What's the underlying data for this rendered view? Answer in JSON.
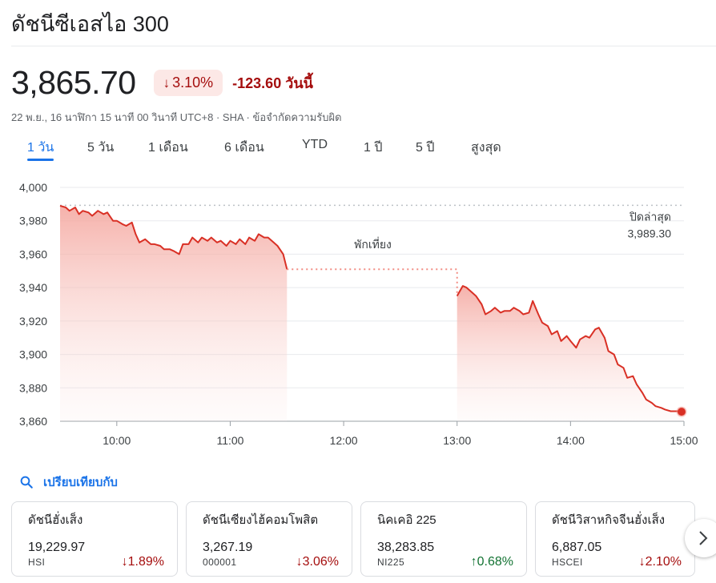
{
  "title": "ดัชนีซีเอสไอ 300",
  "quote": {
    "price": "3,865.70",
    "pct_change": "3.10%",
    "abs_change": "-123.60 วันนี้",
    "meta": "22 พ.ย., 16 นาฬิกา 15 นาที 00 วินาที UTC+8 · SHA · ข้อจำกัดความรับผิด"
  },
  "tabs": [
    {
      "label": "1 วัน",
      "active": true
    },
    {
      "label": "5 วัน"
    },
    {
      "label": "1 เดือน"
    },
    {
      "label": "6 เดือน"
    },
    {
      "label": "YTD"
    },
    {
      "label": "1 ปี"
    },
    {
      "label": "5 ปี"
    },
    {
      "label": "สูงสุด"
    }
  ],
  "chart_data": {
    "type": "area",
    "title": "",
    "xlabel": "",
    "ylabel": "",
    "ylim": [
      3860,
      4000
    ],
    "xlim": [
      "9:30",
      "15:00"
    ],
    "y_ticks": [
      "4,000",
      "3,980",
      "3,960",
      "3,940",
      "3,920",
      "3,900",
      "3,880",
      "3,860"
    ],
    "x_ticks": [
      "10:00",
      "11:00",
      "12:00",
      "13:00",
      "14:00",
      "15:00"
    ],
    "grid": true,
    "previous_close": {
      "label": "ปิดล่าสุด",
      "value": 3989.3,
      "value_label": "3,989.30"
    },
    "lunch_break": {
      "label": "พักเที่ยง",
      "from": "11:30",
      "to": "13:00"
    },
    "color": "#d93025",
    "series": [
      {
        "x": [
          "9:30",
          "9:33",
          "9:35",
          "9:38",
          "9:40",
          "9:42",
          "9:45",
          "9:47",
          "9:50",
          "9:53",
          "9:55",
          "9:58",
          "10:00",
          "10:03",
          "10:05",
          "10:08",
          "10:10",
          "10:12",
          "10:15",
          "10:18",
          "10:20",
          "10:23",
          "10:25",
          "10:28",
          "10:30",
          "10:33",
          "10:35",
          "10:38",
          "10:40",
          "10:43",
          "10:45",
          "10:48",
          "10:50",
          "10:53",
          "10:55",
          "10:58",
          "11:00",
          "11:03",
          "11:05",
          "11:08",
          "11:10",
          "11:13",
          "11:15",
          "11:18",
          "11:20",
          "11:23",
          "11:25",
          "11:28",
          "11:30"
        ],
        "y": [
          3989,
          3988,
          3986,
          3988,
          3984,
          3986,
          3985,
          3983,
          3986,
          3984,
          3985,
          3980,
          3980,
          3978,
          3977,
          3979,
          3972,
          3967,
          3969,
          3966,
          3966,
          3965,
          3963,
          3963,
          3962,
          3960,
          3966,
          3966,
          3970,
          3967,
          3970,
          3968,
          3970,
          3967,
          3968,
          3965,
          3968,
          3966,
          3969,
          3966,
          3970,
          3968,
          3972,
          3970,
          3970,
          3967,
          3965,
          3960,
          3951
        ]
      },
      {
        "x": [
          "13:00",
          "13:03",
          "13:05",
          "13:08",
          "13:10",
          "13:13",
          "13:15",
          "13:18",
          "13:20",
          "13:23",
          "13:25",
          "13:28",
          "13:30",
          "13:33",
          "13:35",
          "13:38",
          "13:40",
          "13:43",
          "13:45",
          "13:48",
          "13:50",
          "13:53",
          "13:55",
          "13:58",
          "14:00",
          "14:03",
          "14:05",
          "14:08",
          "14:10",
          "14:13",
          "14:15",
          "14:18",
          "14:20",
          "14:23",
          "14:25",
          "14:28",
          "14:30",
          "14:33",
          "14:35",
          "14:38",
          "14:40",
          "14:43",
          "14:45",
          "14:48",
          "14:50",
          "14:53",
          "14:55",
          "14:58",
          "15:00"
        ],
        "y": [
          3935,
          3941,
          3940,
          3937,
          3935,
          3930,
          3924,
          3926,
          3928,
          3925,
          3926,
          3926,
          3928,
          3926,
          3924,
          3925,
          3932,
          3924,
          3919,
          3917,
          3912,
          3914,
          3908,
          3911,
          3908,
          3904,
          3909,
          3911,
          3910,
          3915,
          3916,
          3910,
          3902,
          3900,
          3894,
          3892,
          3886,
          3887,
          3882,
          3877,
          3873,
          3871,
          3869,
          3868,
          3867,
          3866,
          3866,
          3866,
          3865.7
        ]
      }
    ]
  },
  "compare": {
    "label": "เปรียบเทียบกับ"
  },
  "cards": [
    {
      "name": "ดัชนีฮั่งเส็ง",
      "value": "19,229.97",
      "symbol": "HSI",
      "change": "1.89%",
      "direction": "down"
    },
    {
      "name": "ดัชนีเซียงไฮ้คอมโพสิต",
      "value": "3,267.19",
      "symbol": "000001",
      "change": "3.06%",
      "direction": "down"
    },
    {
      "name": "นิคเคอิ 225",
      "value": "38,283.85",
      "symbol": "NI225",
      "change": "0.68%",
      "direction": "up"
    },
    {
      "name": "ดัชนีวิสาหกิจจีนฮั่งเส็ง",
      "value": "6,887.05",
      "symbol": "HSCEI",
      "change": "2.10%",
      "direction": "down"
    }
  ],
  "icons": {
    "compare": "search-icon",
    "next": "chevron-right-icon"
  }
}
